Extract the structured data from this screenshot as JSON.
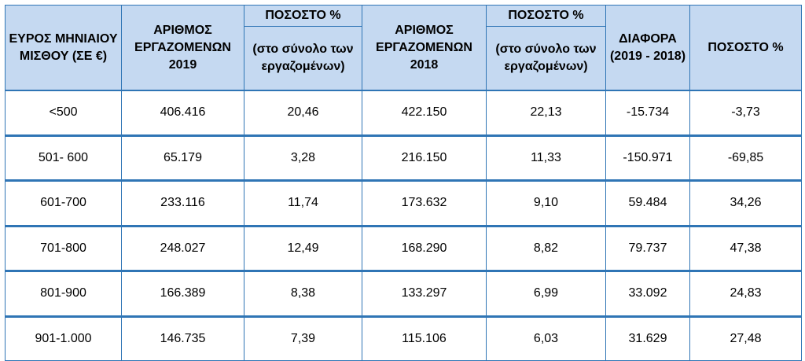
{
  "headers": {
    "range": "ΕΥΡΟΣ ΜΗΝΙΑΙΟΥ ΜΙΣΘΟΥ (ΣΕ €)",
    "employees_2019": "ΑΡΙΘΜΟΣ ΕΡΓΑΖΟΜΕΝΩΝ 2019",
    "percent_2019_top": "ΠΟΣΟΣΤΟ %",
    "percent_2019_sub": "(στο σύνολο των εργαζομένων)",
    "employees_2018": "ΑΡΙΘΜΟΣ ΕΡΓΑΖΟΜΕΝΩΝ 2018",
    "percent_2018_top": "ΠΟΣΟΣΤΟ %",
    "percent_2018_sub": "(στο σύνολο των εργαζομένων)",
    "difference": "ΔΙΑΦΟΡΑ (2019 - 2018)",
    "percent_change": "ΠΟΣΟΣΤΟ %"
  },
  "rows": [
    {
      "range": "<500",
      "employees_2019": "406.416",
      "percent_2019": "20,46",
      "employees_2018": "422.150",
      "percent_2018": "22,13",
      "difference": "-15.734",
      "percent_change": "-3,73"
    },
    {
      "range": "501- 600",
      "employees_2019": "65.179",
      "percent_2019": "3,28",
      "employees_2018": "216.150",
      "percent_2018": "11,33",
      "difference": "-150.971",
      "percent_change": "-69,85"
    },
    {
      "range": "601-700",
      "employees_2019": "233.116",
      "percent_2019": "11,74",
      "employees_2018": "173.632",
      "percent_2018": "9,10",
      "difference": "59.484",
      "percent_change": "34,26"
    },
    {
      "range": "701-800",
      "employees_2019": "248.027",
      "percent_2019": "12,49",
      "employees_2018": "168.290",
      "percent_2018": "8,82",
      "difference": "79.737",
      "percent_change": "47,38"
    },
    {
      "range": "801-900",
      "employees_2019": "166.389",
      "percent_2019": "8,38",
      "employees_2018": "133.297",
      "percent_2018": "6,99",
      "difference": "33.092",
      "percent_change": "24,83"
    },
    {
      "range": "901-1.000",
      "employees_2019": "146.735",
      "percent_2019": "7,39",
      "employees_2018": "115.106",
      "percent_2018": "6,03",
      "difference": "31.629",
      "percent_change": "27,48"
    }
  ]
}
